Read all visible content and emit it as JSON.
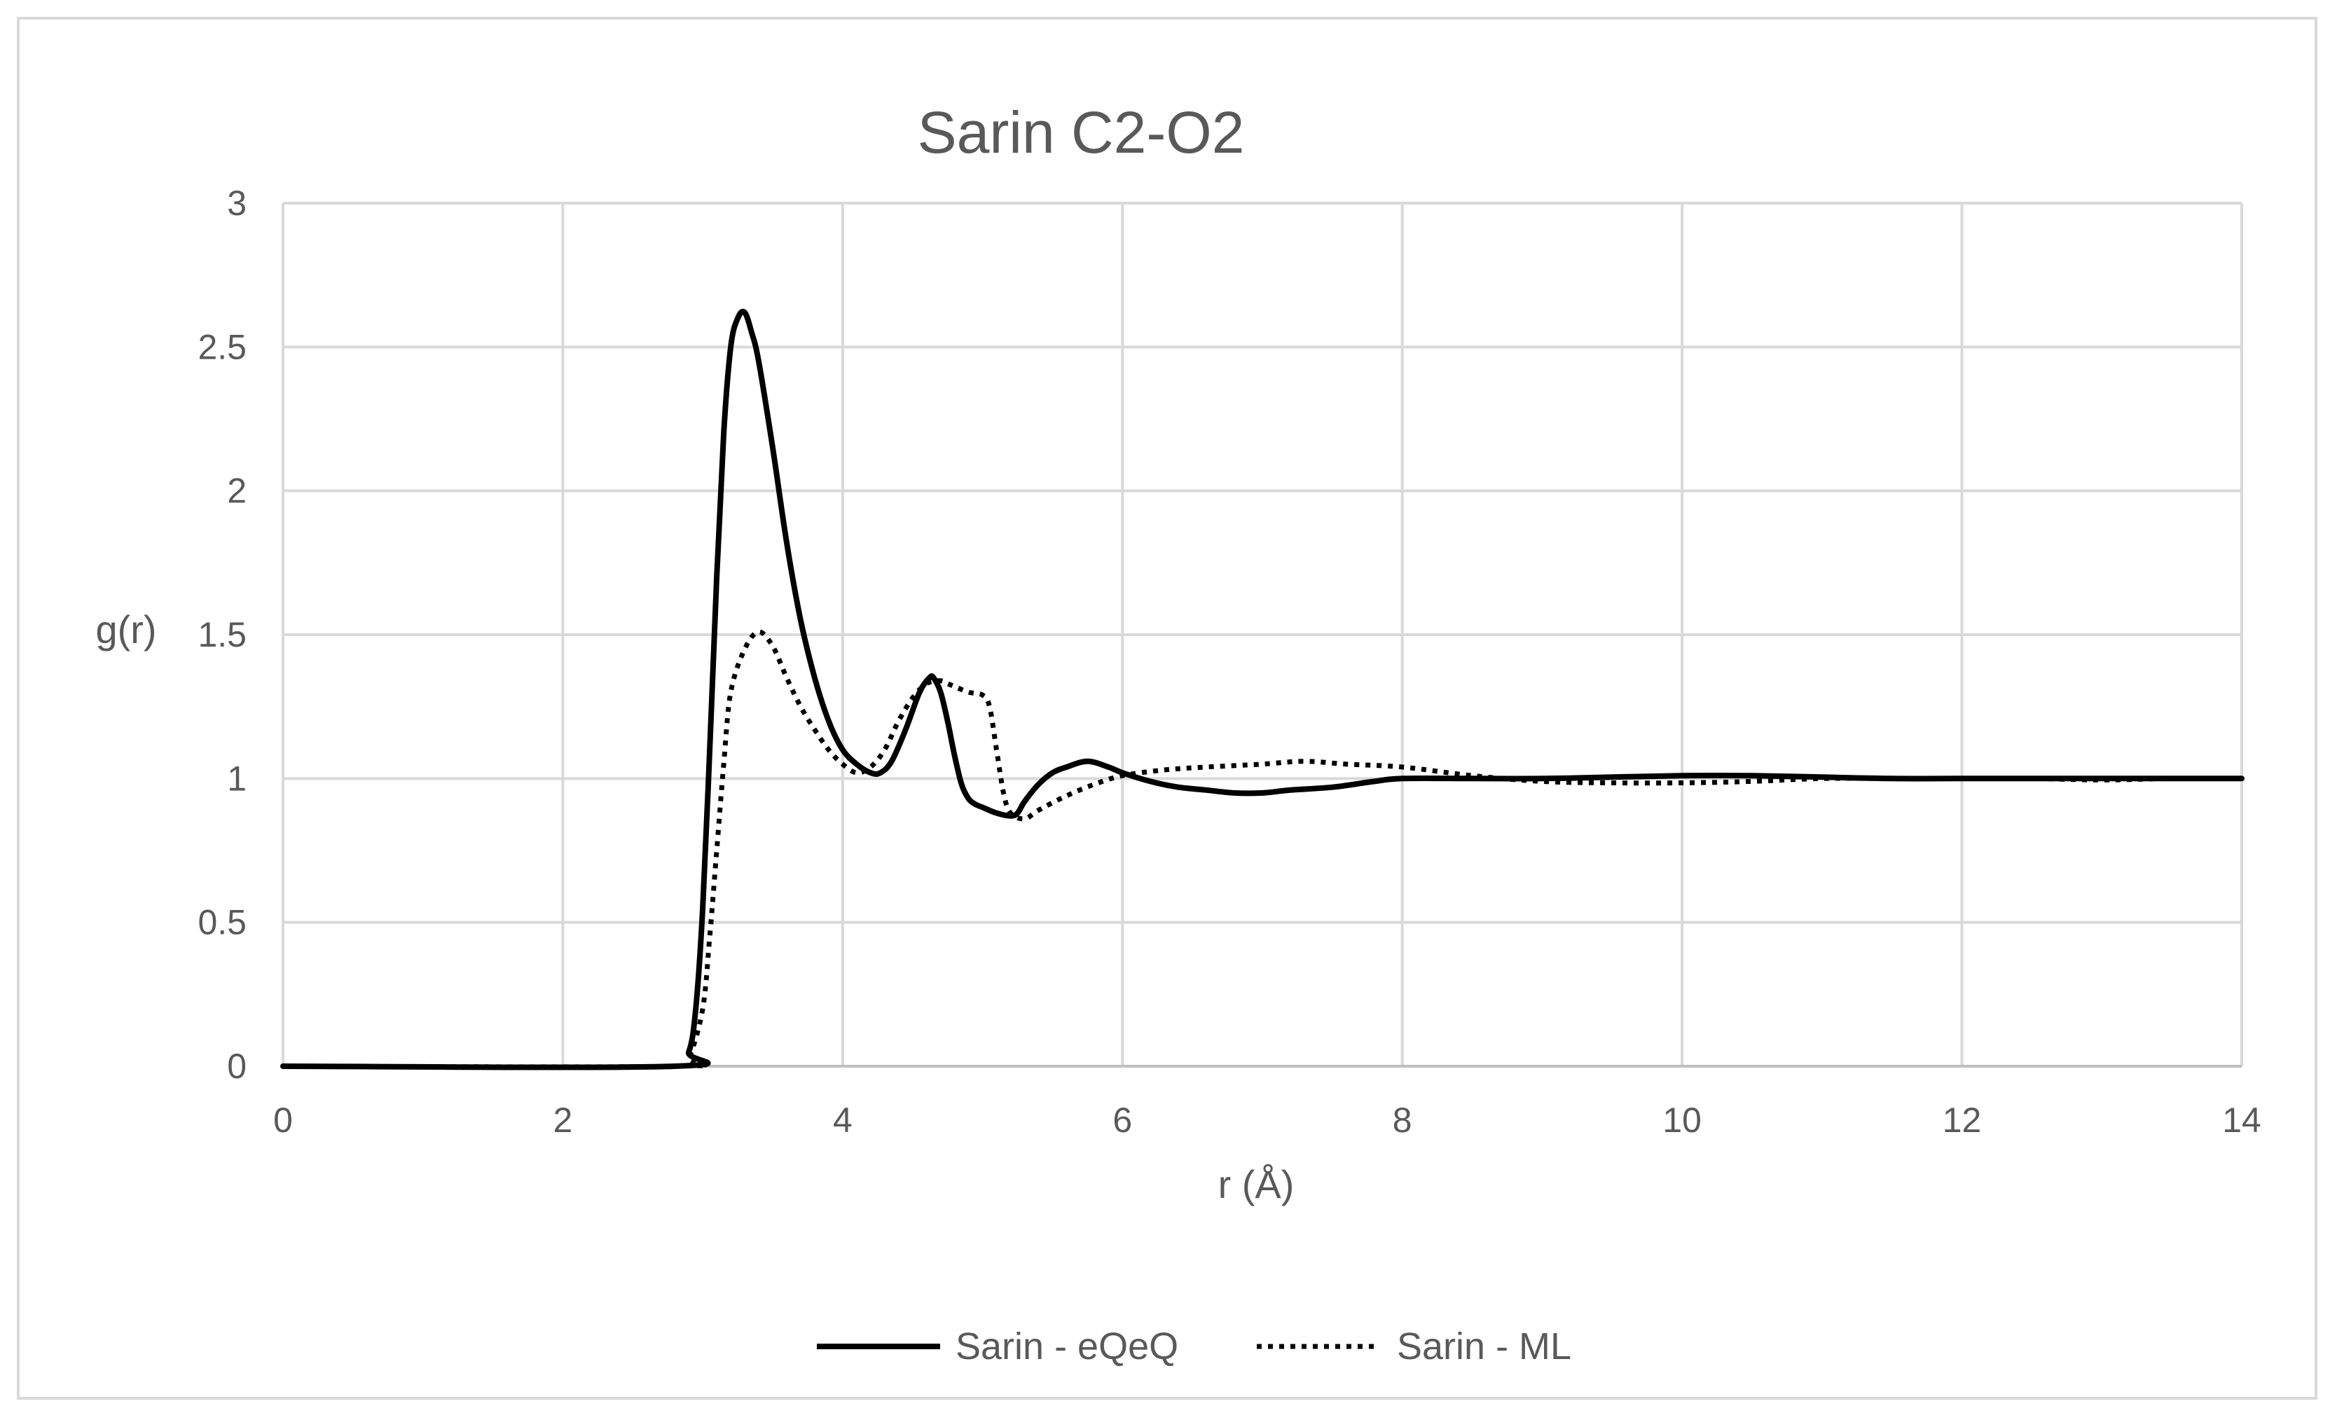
{
  "chart_data": {
    "type": "line",
    "title": "Sarin C2-O2",
    "xlabel": "r (Å)",
    "ylabel": "g(r)",
    "xlim": [
      0,
      14
    ],
    "ylim": [
      0,
      3
    ],
    "xticks": [
      0,
      2,
      4,
      6,
      8,
      10,
      12,
      14
    ],
    "yticks": [
      0,
      0.5,
      1,
      1.5,
      2,
      2.5,
      3
    ],
    "xtick_labels": [
      "0",
      "2",
      "4",
      "6",
      "8",
      "10",
      "12",
      "14"
    ],
    "ytick_labels": [
      "0",
      "0.5",
      "1",
      "1.5",
      "2",
      "2.5",
      "3"
    ],
    "grid": true,
    "legend_position": "bottom",
    "series": [
      {
        "name": "Sarin - eQeQ",
        "style": "solid",
        "color": "#000000",
        "x": [
          0,
          2.8,
          2.9,
          2.95,
          3.0,
          3.05,
          3.1,
          3.15,
          3.2,
          3.25,
          3.3,
          3.35,
          3.4,
          3.5,
          3.6,
          3.7,
          3.8,
          3.9,
          4.0,
          4.1,
          4.2,
          4.27,
          4.35,
          4.45,
          4.55,
          4.62,
          4.65,
          4.7,
          4.75,
          4.8,
          4.85,
          4.9,
          4.95,
          5.0,
          5.1,
          5.2,
          5.25,
          5.3,
          5.4,
          5.5,
          5.6,
          5.75,
          5.9,
          6.0,
          6.2,
          6.4,
          6.6,
          6.8,
          7.0,
          7.2,
          7.5,
          7.8,
          8.0,
          8.5,
          9.0,
          9.5,
          10.0,
          10.5,
          11.0,
          11.5,
          12.0,
          12.5,
          13.0,
          13.5,
          14.0
        ],
        "y": [
          0,
          0,
          0.05,
          0.2,
          0.55,
          1.1,
          1.7,
          2.2,
          2.5,
          2.6,
          2.62,
          2.55,
          2.45,
          2.15,
          1.82,
          1.55,
          1.35,
          1.2,
          1.1,
          1.05,
          1.02,
          1.02,
          1.06,
          1.17,
          1.3,
          1.35,
          1.35,
          1.3,
          1.2,
          1.08,
          0.98,
          0.93,
          0.91,
          0.9,
          0.88,
          0.87,
          0.88,
          0.92,
          0.98,
          1.02,
          1.04,
          1.06,
          1.04,
          1.02,
          0.99,
          0.97,
          0.96,
          0.95,
          0.95,
          0.96,
          0.97,
          0.99,
          1.0,
          1.0,
          1.0,
          1.005,
          1.01,
          1.01,
          1.005,
          1.0,
          1.0,
          1.0,
          1.0,
          1.0,
          1.0
        ]
      },
      {
        "name": "Sarin - ML",
        "style": "dotted",
        "color": "#000000",
        "x": [
          0,
          2.8,
          2.9,
          3.0,
          3.05,
          3.1,
          3.15,
          3.2,
          3.3,
          3.4,
          3.5,
          3.6,
          3.7,
          3.8,
          3.9,
          4.0,
          4.1,
          4.2,
          4.3,
          4.4,
          4.5,
          4.6,
          4.7,
          4.75,
          4.8,
          4.9,
          5.0,
          5.05,
          5.1,
          5.15,
          5.2,
          5.3,
          5.4,
          5.6,
          5.8,
          6.0,
          6.3,
          6.6,
          7.0,
          7.3,
          7.6,
          8.0,
          8.5,
          9.0,
          9.5,
          10.0,
          10.5,
          11.0,
          11.5,
          12.0,
          12.5,
          13.0,
          13.5,
          14.0
        ],
        "y": [
          0,
          0,
          0.03,
          0.2,
          0.45,
          0.75,
          1.05,
          1.3,
          1.45,
          1.51,
          1.46,
          1.35,
          1.25,
          1.17,
          1.1,
          1.05,
          1.02,
          1.04,
          1.1,
          1.2,
          1.28,
          1.33,
          1.34,
          1.33,
          1.32,
          1.3,
          1.29,
          1.25,
          1.1,
          0.95,
          0.88,
          0.86,
          0.89,
          0.94,
          0.98,
          1.01,
          1.03,
          1.04,
          1.05,
          1.06,
          1.05,
          1.04,
          1.01,
          0.99,
          0.985,
          0.985,
          0.99,
          1.0,
          1.0,
          1.0,
          1.0,
          0.995,
          1.0,
          1.0
        ]
      }
    ]
  }
}
